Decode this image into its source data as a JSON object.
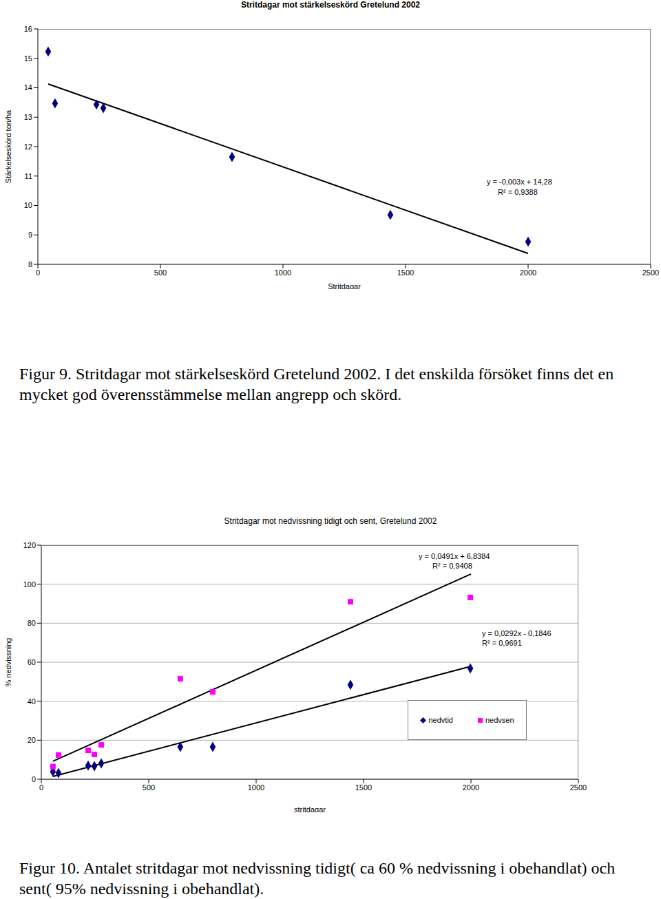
{
  "chart_data": [
    {
      "type": "scatter",
      "title": "Stritdagar mot stärkelseskörd Gretelund 2002",
      "x_label": "Stritdagar",
      "y_label": "Stärkelseskörd ton/ha",
      "x": [
        42,
        70,
        239,
        267,
        792,
        1438,
        2000
      ],
      "values": [
        15.23,
        13.47,
        13.43,
        13.31,
        11.65,
        9.68,
        8.77
      ],
      "color": "#000080",
      "marker": "diamond",
      "trendline": {
        "x": [
          42,
          2000
        ],
        "values": [
          14.13,
          8.37
        ],
        "color": "#000000"
      },
      "annotations": [
        "y = -0,003x + 14,28",
        "R² = 0,9388"
      ],
      "xlim": [
        0,
        2500
      ],
      "xticks": [
        0,
        500,
        1000,
        1500,
        2000,
        2500
      ],
      "ylim": [
        8,
        16
      ],
      "yticks": [
        8,
        9,
        10,
        11,
        12,
        13,
        14,
        15,
        16
      ],
      "grid": false,
      "caption": "Figur 9. Stritdagar mot stärkelseskörd Gretelund 2002. I det enskilda försöket finns det en mycket god överensstämmelse mellan angrepp och skörd."
    },
    {
      "type": "scatter",
      "title": "Stritdagar mot nedvissning tidigt och sent, Gretelund 2002",
      "x_label": "stritdagar",
      "y_label": "% nedvissning",
      "series": [
        {
          "name": "nedvtid",
          "color": "#000080",
          "marker": "diamond",
          "x": [
            54,
            80,
            218,
            247,
            279,
            647,
            798,
            1439,
            1997
          ],
          "values": [
            3.9,
            3.2,
            7,
            6.7,
            8.1,
            16.6,
            16.6,
            48.4,
            56.8
          ],
          "trendline": {
            "x": [
              54,
              2000
            ],
            "values": [
              1.4,
              57.9
            ],
            "color": "#000000"
          },
          "annotations": [
            "y = 0,0292x - 0,1846",
            "R² = 0,9691"
          ]
        },
        {
          "name": "nedvsen",
          "color": "#ff00ff",
          "marker": "square",
          "x": [
            54,
            80,
            218,
            247,
            279,
            647,
            798,
            1439,
            1997
          ],
          "values": [
            6.5,
            12.4,
            14.8,
            12.7,
            17.6,
            51.5,
            44.8,
            91,
            93.2
          ],
          "trendline": {
            "x": [
              54,
              2000
            ],
            "values": [
              9.2,
              105.2
            ],
            "color": "#000000"
          },
          "annotations": [
            "y = 0,0491x + 6,8384",
            "R² = 0,9408"
          ]
        }
      ],
      "xlim": [
        0,
        2500
      ],
      "xticks": [
        0,
        500,
        1000,
        1500,
        2000,
        2500
      ],
      "ylim": [
        0,
        120
      ],
      "yticks": [
        0,
        20,
        40,
        60,
        80,
        100,
        120
      ],
      "grid": true,
      "legend": "lower right",
      "caption": "Figur 10. Antalet stritdagar mot nedvissning tidigt( ca 60 % nedvissning i obehandlat) och sent( 95% nedvissning i obehandlat)."
    }
  ]
}
